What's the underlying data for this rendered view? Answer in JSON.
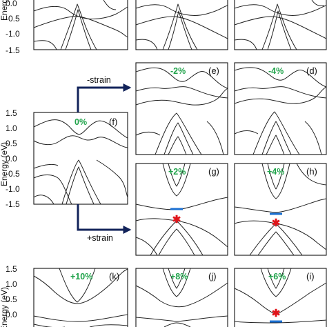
{
  "figure": {
    "y_axis_label": "Energy (eV)",
    "y_ticks": [
      "1.5",
      "1.0",
      "0.5",
      "0.0",
      "-0.5",
      "-1.0",
      "-1.5"
    ],
    "arrows": {
      "compressive": "-strain",
      "tensile": "+strain"
    },
    "colors": {
      "strain_text": "#1fa34a",
      "arrow": "#12235a",
      "cbm_marker": "#1a6fd1",
      "vbm_marker": "#e0141a"
    }
  },
  "panels": [
    {
      "id": "f",
      "strain": "0%",
      "letter": "(f)"
    },
    {
      "id": "e",
      "strain": "-2%",
      "letter": "(e)"
    },
    {
      "id": "d",
      "strain": "-4%",
      "letter": "(d)"
    },
    {
      "id": "g",
      "strain": "+2%",
      "letter": "(g)"
    },
    {
      "id": "h",
      "strain": "+4%",
      "letter": "(h)"
    },
    {
      "id": "k",
      "strain": "+10%",
      "letter": "(k)"
    },
    {
      "id": "j",
      "strain": "+8%",
      "letter": "(j)"
    },
    {
      "id": "i",
      "strain": "+6%",
      "letter": "(i)"
    }
  ]
}
